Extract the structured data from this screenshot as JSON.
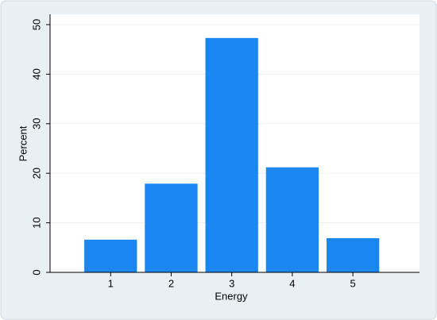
{
  "chart_data": {
    "type": "bar",
    "x": [
      1,
      2,
      3,
      4,
      5
    ],
    "values": [
      6.6,
      17.9,
      47.3,
      21.2,
      6.9
    ],
    "color": "#1a86f0",
    "xlabel": "Energy",
    "ylabel": "Percent",
    "xlim": [
      0,
      6.1
    ],
    "xticks": [
      1,
      2,
      3,
      4,
      5
    ],
    "ylim": [
      0,
      50
    ],
    "yticks": [
      0,
      10,
      20,
      30,
      40,
      50
    ],
    "grid": true
  }
}
